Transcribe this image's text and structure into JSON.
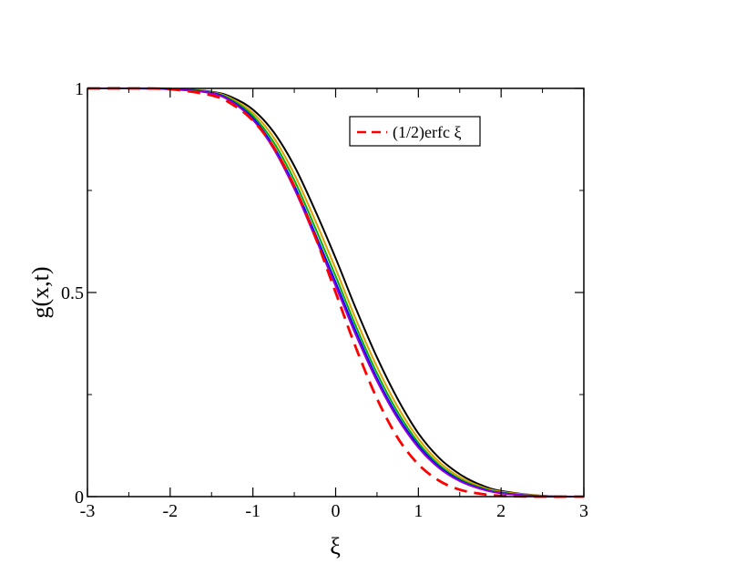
{
  "chart_data": {
    "type": "line",
    "title": "",
    "xlabel": "ξ",
    "ylabel": "g(x,t)",
    "xlim": [
      -3,
      3
    ],
    "ylim": [
      0,
      1
    ],
    "x_ticks": [
      {
        "value": -3,
        "label": "-3"
      },
      {
        "value": -2,
        "label": "-2"
      },
      {
        "value": -1,
        "label": "-1"
      },
      {
        "value": 0,
        "label": "0"
      },
      {
        "value": 1,
        "label": "1"
      },
      {
        "value": 2,
        "label": "2"
      },
      {
        "value": 3,
        "label": "3"
      }
    ],
    "y_ticks": [
      {
        "value": 0,
        "label": "0"
      },
      {
        "value": 0.5,
        "label": "0.5"
      },
      {
        "value": 1,
        "label": "1"
      }
    ],
    "y_minor_ticks": [
      0.25,
      0.75
    ],
    "grid": false,
    "legend": {
      "position": "top-right",
      "entries": [
        "(1/2)erfc ξ"
      ]
    },
    "series": [
      {
        "name": "",
        "color": "#000000",
        "style": "solid",
        "x": [
          -3,
          -2.5,
          -2,
          -1.5,
          -1.25,
          -1,
          -0.75,
          -0.5,
          -0.25,
          0,
          0.25,
          0.5,
          0.75,
          1,
          1.25,
          1.5,
          1.75,
          2,
          2.5,
          3
        ],
        "y": [
          1,
          1,
          0.999,
          0.992,
          0.978,
          0.948,
          0.893,
          0.81,
          0.702,
          0.584,
          0.458,
          0.341,
          0.239,
          0.155,
          0.095,
          0.055,
          0.029,
          0.014,
          0.002,
          0
        ]
      },
      {
        "name": "",
        "color": "#e0a000",
        "style": "solid",
        "x": [
          -3,
          -2.5,
          -2,
          -1.5,
          -1.25,
          -1,
          -0.75,
          -0.5,
          -0.25,
          0,
          0.25,
          0.5,
          0.75,
          1,
          1.25,
          1.5,
          1.75,
          2,
          2.5,
          3
        ],
        "y": [
          1,
          1,
          0.999,
          0.991,
          0.974,
          0.94,
          0.88,
          0.79,
          0.678,
          0.558,
          0.432,
          0.318,
          0.22,
          0.142,
          0.085,
          0.048,
          0.025,
          0.012,
          0.002,
          0
        ]
      },
      {
        "name": "",
        "color": "#00b000",
        "style": "solid",
        "x": [
          -3,
          -2.5,
          -2,
          -1.5,
          -1.25,
          -1,
          -0.75,
          -0.5,
          -0.25,
          0,
          0.25,
          0.5,
          0.75,
          1,
          1.25,
          1.5,
          1.75,
          2,
          2.5,
          3
        ],
        "y": [
          1,
          1,
          0.999,
          0.99,
          0.971,
          0.933,
          0.868,
          0.775,
          0.66,
          0.54,
          0.415,
          0.302,
          0.207,
          0.132,
          0.078,
          0.043,
          0.022,
          0.01,
          0.001,
          0
        ]
      },
      {
        "name": "",
        "color": "#0000ff",
        "style": "solid",
        "x": [
          -3,
          -2.5,
          -2,
          -1.5,
          -1.25,
          -1,
          -0.75,
          -0.5,
          -0.25,
          0,
          0.25,
          0.5,
          0.75,
          1,
          1.25,
          1.5,
          1.75,
          2,
          2.5,
          3
        ],
        "y": [
          1,
          1,
          0.998,
          0.989,
          0.968,
          0.927,
          0.858,
          0.762,
          0.645,
          0.525,
          0.402,
          0.29,
          0.197,
          0.125,
          0.073,
          0.04,
          0.02,
          0.009,
          0.001,
          0
        ]
      },
      {
        "name": "",
        "color": "#9400d3",
        "style": "solid",
        "x": [
          -3,
          -2.5,
          -2,
          -1.5,
          -1.25,
          -1,
          -0.75,
          -0.5,
          -0.25,
          0,
          0.25,
          0.5,
          0.75,
          1,
          1.25,
          1.5,
          1.75,
          2,
          2.5,
          3
        ],
        "y": [
          1,
          1,
          0.998,
          0.988,
          0.966,
          0.923,
          0.852,
          0.754,
          0.636,
          0.516,
          0.393,
          0.283,
          0.191,
          0.12,
          0.07,
          0.038,
          0.019,
          0.008,
          0.001,
          0
        ]
      },
      {
        "name": "(1/2)erfc ξ",
        "color": "#ff0000",
        "style": "dashed",
        "x": [
          -3,
          -2.5,
          -2,
          -1.5,
          -1.25,
          -1,
          -0.75,
          -0.5,
          -0.25,
          0,
          0.25,
          0.5,
          0.75,
          1,
          1.25,
          1.5,
          1.75,
          2,
          2.5,
          3
        ],
        "y": [
          1,
          1,
          0.998,
          0.983,
          0.961,
          0.921,
          0.856,
          0.76,
          0.638,
          0.5,
          0.362,
          0.24,
          0.144,
          0.079,
          0.039,
          0.017,
          0.007,
          0.002,
          0,
          0
        ]
      }
    ]
  }
}
